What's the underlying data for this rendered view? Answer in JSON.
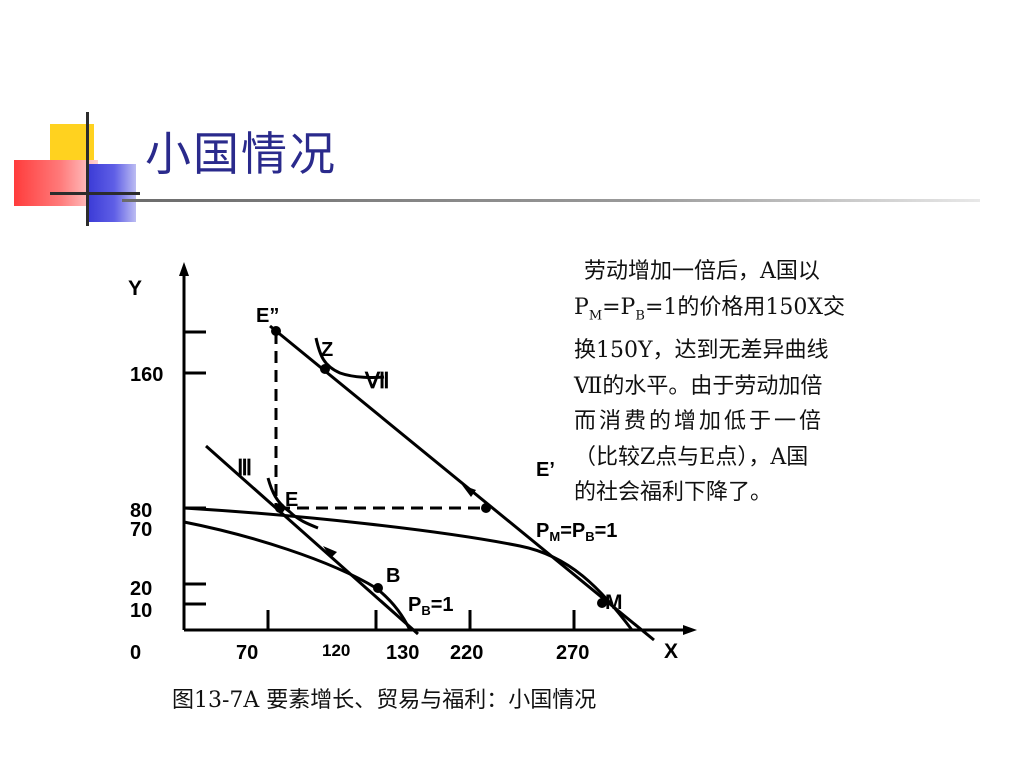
{
  "title": "小国情况",
  "colors": {
    "title": "#2a2a8c",
    "deco_yellow": "#ffd21f",
    "deco_blue": "#3b3bd6",
    "deco_red": "#ff3c3c"
  },
  "axes": {
    "y_label": "Y",
    "x_label": "X",
    "origin": "0",
    "y_ticks": [
      "160",
      "80",
      "70",
      "20",
      "10"
    ],
    "x_ticks": [
      "70",
      "120",
      "130",
      "220",
      "270"
    ]
  },
  "points": {
    "e_double_prime": "E”",
    "z": "Z",
    "e": "E",
    "e_prime": "E’",
    "b": "B",
    "m": "M"
  },
  "curves": {
    "vii": "Ⅶ",
    "iii": "Ⅲ"
  },
  "lines": {
    "pm_pb_p": "P",
    "pm_pb_m": "M",
    "pm_pb_eq": "=P",
    "pm_pb_b": "B",
    "pm_pb_tail": "=1",
    "pb_p": "P",
    "pb_b": "B",
    "pb_tail": "=1"
  },
  "description": [
    "劳动增加一倍后，A国以",
    "P",
    "M",
    "=P",
    "B",
    "=1的价格用150X交",
    "换150Y，达到无差异曲线",
    "Ⅶ的水平。由于劳动加倍",
    "而消费的增加低于一倍",
    "（比较Z点与E点），A国",
    "的社会福利下降了。"
  ],
  "caption": "图13-7A  要素增长、贸易与福利：小国情况"
}
